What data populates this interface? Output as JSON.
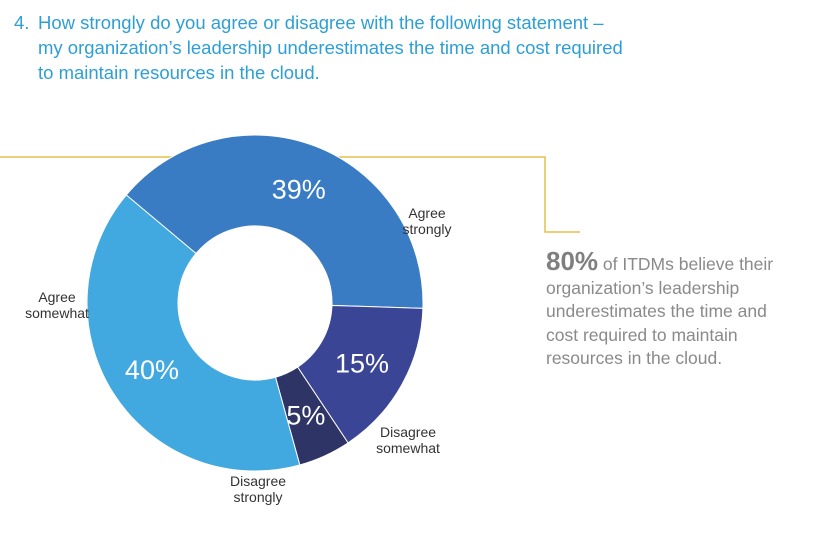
{
  "question": {
    "number": "4.",
    "line1": "How strongly do you agree or disagree with the following statement –",
    "line2": "my organization’s leadership underestimates the time and cost required",
    "line3": "to maintain resources in the cloud."
  },
  "callout": {
    "highlight": "80%",
    "text_line1": " of ITDMs believe their",
    "text_line2": "organization’s leadership",
    "text_line3": "underestimates the time and",
    "text_line4": "cost required to maintain",
    "text_line5": "resources in the cloud."
  },
  "colors": {
    "agree_strongly": "#3a7cc4",
    "agree_somewhat": "#41a8e0",
    "disagree_strongly": "#2f3466",
    "disagree_somewhat": "#3b4596",
    "accent_line": "#e3c24a"
  },
  "chart_data": {
    "type": "pie",
    "variant": "donut",
    "slices": [
      {
        "label_line1": "Agree",
        "label_line2": "strongly",
        "value": 39,
        "value_label": "39%",
        "color": "#3a7cc4"
      },
      {
        "label_line1": "Disagree",
        "label_line2": "somewhat",
        "value": 15,
        "value_label": "15%",
        "color": "#3b4596"
      },
      {
        "label_line1": "Disagree",
        "label_line2": "strongly",
        "value": 5,
        "value_label": "5%",
        "color": "#2f3466"
      },
      {
        "label_line1": "Agree",
        "label_line2": "somewhat",
        "value": 40,
        "value_label": "40%",
        "color": "#41a8e0"
      }
    ]
  }
}
